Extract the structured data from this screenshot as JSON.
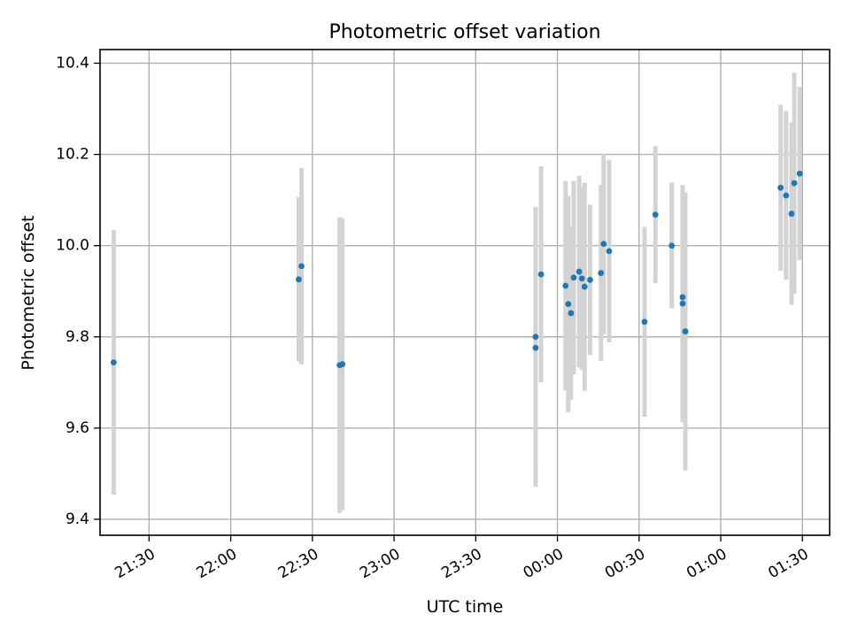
{
  "chart_data": {
    "type": "scatter",
    "title": "Photometric offset variation",
    "xlabel": "UTC time",
    "ylabel": "Photometric offset",
    "x_tick_labels": [
      "21:30",
      "22:00",
      "22:30",
      "23:00",
      "23:30",
      "00:00",
      "00:30",
      "01:00",
      "01:30"
    ],
    "y_tick_labels": [
      "9.4",
      "9.6",
      "9.8",
      "10.0",
      "10.2",
      "10.4"
    ],
    "xlim": [
      "21:12",
      "01:40"
    ],
    "ylim": [
      9.365,
      10.43
    ],
    "grid": true,
    "colors": {
      "marker": "#1f77b4",
      "errorbar": "#d3d3d3"
    },
    "series": [
      {
        "points": [
          {
            "x": "21:17",
            "y": 9.744,
            "yerr": 0.29
          },
          {
            "x": "22:25",
            "y": 9.926,
            "yerr": 0.18
          },
          {
            "x": "22:26",
            "y": 9.955,
            "yerr": 0.215
          },
          {
            "x": "22:40",
            "y": 9.738,
            "yerr": 0.324
          },
          {
            "x": "22:41",
            "y": 9.74,
            "yerr": 0.32
          },
          {
            "x": "23:52",
            "y": 9.776,
            "yerr": 0.305
          },
          {
            "x": "23:52",
            "y": 9.8,
            "yerr": 0.285
          },
          {
            "x": "23:54",
            "y": 9.937,
            "yerr": 0.237
          },
          {
            "x": "00:03",
            "y": 9.912,
            "yerr": 0.23
          },
          {
            "x": "00:04",
            "y": 9.872,
            "yerr": 0.237
          },
          {
            "x": "00:05",
            "y": 9.852,
            "yerr": 0.19
          },
          {
            "x": "00:06",
            "y": 9.93,
            "yerr": 0.212
          },
          {
            "x": "00:08",
            "y": 9.943,
            "yerr": 0.21
          },
          {
            "x": "00:09",
            "y": 9.928,
            "yerr": 0.2
          },
          {
            "x": "00:10",
            "y": 9.91,
            "yerr": 0.228
          },
          {
            "x": "00:12",
            "y": 9.925,
            "yerr": 0.165
          },
          {
            "x": "00:16",
            "y": 9.94,
            "yerr": 0.193
          },
          {
            "x": "00:17",
            "y": 10.004,
            "yerr": 0.198
          },
          {
            "x": "00:19",
            "y": 9.988,
            "yerr": 0.2
          },
          {
            "x": "00:32",
            "y": 9.833,
            "yerr": 0.208
          },
          {
            "x": "00:36",
            "y": 10.068,
            "yerr": 0.15
          },
          {
            "x": "00:42",
            "y": 10.0,
            "yerr": 0.138
          },
          {
            "x": "00:46",
            "y": 9.887,
            "yerr": 0.23
          },
          {
            "x": "00:46",
            "y": 9.873,
            "yerr": 0.26
          },
          {
            "x": "00:47",
            "y": 9.812,
            "yerr": 0.305
          },
          {
            "x": "01:22",
            "y": 10.127,
            "yerr": 0.182
          },
          {
            "x": "01:24",
            "y": 10.11,
            "yerr": 0.185
          },
          {
            "x": "01:26",
            "y": 10.07,
            "yerr": 0.2
          },
          {
            "x": "01:27",
            "y": 10.137,
            "yerr": 0.242
          },
          {
            "x": "01:29",
            "y": 10.158,
            "yerr": 0.19
          }
        ]
      }
    ]
  }
}
